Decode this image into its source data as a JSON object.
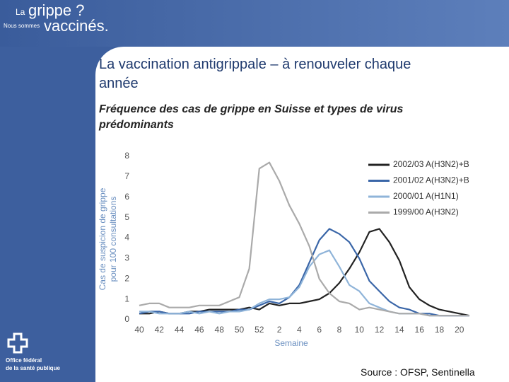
{
  "branding": {
    "la": "La",
    "grippe": "grippe ?",
    "nous_sommes": "Nous sommes",
    "vaccines": "vaccinés.",
    "office_1": "Office fédéral",
    "office_2": "de la santé publique"
  },
  "chart_data": {
    "type": "line",
    "title": "La vaccination antigrippale – à renouveler chaque année",
    "subtitle": "Fréquence des cas de grippe en Suisse et types de virus prédominants",
    "source": "Source : OFSP, Sentinella",
    "x_label": "Semaine",
    "y_label": [
      "Cas de suspicion de grippe",
      "pour 100 consultations"
    ],
    "categories": [
      "40",
      null,
      "42",
      null,
      "44",
      null,
      "46",
      null,
      "48",
      null,
      "50",
      null,
      "52",
      null,
      "2",
      null,
      "4",
      null,
      "6",
      null,
      "8",
      null,
      "10",
      null,
      "12",
      null,
      "14",
      null,
      "16",
      null,
      "18",
      null,
      "20",
      null
    ],
    "ylim": [
      0,
      8
    ],
    "yticks": [
      0,
      1,
      2,
      3,
      4,
      5,
      6,
      7,
      8
    ],
    "series": [
      {
        "name": "2002/03 A(H3N2)+B",
        "color": "#222222",
        "values": [
          0.3,
          0.3,
          0.4,
          0.3,
          0.3,
          0.4,
          0.4,
          0.5,
          0.5,
          0.5,
          0.5,
          0.6,
          0.5,
          0.8,
          0.7,
          0.8,
          0.8,
          0.9,
          1.0,
          1.3,
          1.8,
          2.5,
          3.3,
          4.3,
          4.45,
          3.8,
          2.9,
          1.6,
          1.0,
          0.7,
          0.5,
          0.4,
          0.3,
          0.2
        ]
      },
      {
        "name": "2001/02 A(H3N2)+B",
        "color": "#3a66a8",
        "values": [
          0.3,
          0.4,
          0.4,
          0.3,
          0.3,
          0.3,
          0.4,
          0.4,
          0.4,
          0.4,
          0.5,
          0.5,
          0.7,
          0.9,
          0.8,
          1.1,
          1.7,
          2.8,
          3.9,
          4.45,
          4.2,
          3.8,
          3.0,
          1.9,
          1.4,
          0.9,
          0.6,
          0.5,
          0.3,
          0.3,
          0.2,
          0.2,
          0.2,
          0.2
        ]
      },
      {
        "name": "2000/01 A(H1N1)",
        "color": "#8fb4d9",
        "values": [
          0.4,
          0.4,
          0.3,
          0.3,
          0.3,
          0.4,
          0.3,
          0.4,
          0.3,
          0.4,
          0.4,
          0.5,
          0.8,
          1.0,
          1.0,
          1.1,
          1.6,
          2.6,
          3.2,
          3.4,
          2.6,
          1.7,
          1.4,
          0.8,
          0.6,
          0.4,
          0.3,
          0.3,
          0.3,
          0.2,
          0.2,
          0.2,
          0.2,
          0.2
        ]
      },
      {
        "name": "1999/00 A(H3N2)",
        "color": "#aaaaaa",
        "values": [
          0.7,
          0.8,
          0.8,
          0.6,
          0.6,
          0.6,
          0.7,
          0.7,
          0.7,
          0.9,
          1.1,
          2.5,
          7.4,
          7.7,
          6.8,
          5.6,
          4.7,
          3.6,
          2.0,
          1.3,
          0.9,
          0.8,
          0.5,
          0.6,
          0.5,
          0.4,
          0.3,
          0.3,
          0.3,
          0.2,
          0.2,
          0.2,
          0.2,
          0.2
        ]
      }
    ]
  }
}
